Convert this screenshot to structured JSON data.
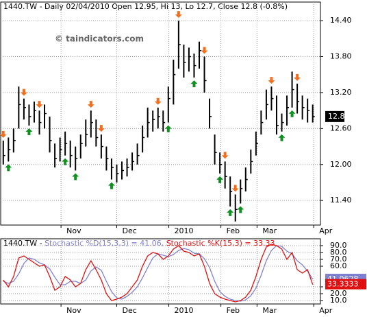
{
  "chart_data": [
    {
      "type": "ohlc",
      "title": "1440.TW - Daily 02/04/2010 Open 12.95, Hi 13, Lo 12.7, Close 12.8 (-0.8%)",
      "watermark": "© taindicators.com",
      "color": "#000000",
      "grid": true,
      "high": [
        12.4,
        12.45,
        12.6,
        13.3,
        13.1,
        13.0,
        13.05,
        12.9,
        13.0,
        12.8,
        12.35,
        12.45,
        12.55,
        12.4,
        12.3,
        12.5,
        12.75,
        12.9,
        12.75,
        12.5,
        12.3,
        12.1,
        12.0,
        12.05,
        12.1,
        12.2,
        12.35,
        12.65,
        12.95,
        12.9,
        12.95,
        12.9,
        13.3,
        13.75,
        14.4,
        14.0,
        13.95,
        13.85,
        14.05,
        13.8,
        13.1,
        12.5,
        12.2,
        12.05,
        11.8,
        11.5,
        11.75,
        11.95,
        12.25,
        12.55,
        12.9,
        13.25,
        13.3,
        13.15,
        12.85,
        13.15,
        13.55,
        13.35,
        13.15,
        13.1,
        13.0
      ],
      "low": [
        12.0,
        12.05,
        12.2,
        12.6,
        12.75,
        12.65,
        12.7,
        12.5,
        12.6,
        12.2,
        11.95,
        12.05,
        12.15,
        11.95,
        11.9,
        12.1,
        12.3,
        12.45,
        12.3,
        12.1,
        11.9,
        11.75,
        11.7,
        11.75,
        11.8,
        11.9,
        12.0,
        12.2,
        12.45,
        12.55,
        12.6,
        12.55,
        12.7,
        13.0,
        13.6,
        13.45,
        13.55,
        13.45,
        13.6,
        13.2,
        12.6,
        12.0,
        11.85,
        11.6,
        11.3,
        11.05,
        11.35,
        11.55,
        11.85,
        12.15,
        12.5,
        12.75,
        12.9,
        12.5,
        12.55,
        12.65,
        12.95,
        12.85,
        12.75,
        12.7,
        12.7
      ],
      "close": [
        12.15,
        12.25,
        12.4,
        13.0,
        12.95,
        12.8,
        12.9,
        12.7,
        12.85,
        12.4,
        12.1,
        12.25,
        12.35,
        12.15,
        12.1,
        12.35,
        12.5,
        12.7,
        12.45,
        12.3,
        12.1,
        11.95,
        11.85,
        11.9,
        11.95,
        12.05,
        12.15,
        12.45,
        12.7,
        12.75,
        12.8,
        12.7,
        13.1,
        13.5,
        14.0,
        13.7,
        13.8,
        13.65,
        13.9,
        13.4,
        12.8,
        12.2,
        12.0,
        11.8,
        11.55,
        11.25,
        11.6,
        11.75,
        12.05,
        12.35,
        12.7,
        13.0,
        13.1,
        12.65,
        12.7,
        12.95,
        13.25,
        13.05,
        12.95,
        12.9,
        12.8
      ],
      "down_arrows": [
        0,
        4,
        7,
        17,
        19,
        30,
        34,
        39,
        43,
        45,
        52,
        57
      ],
      "up_arrows": [
        1,
        5,
        12,
        14,
        21,
        32,
        37,
        42,
        44,
        46,
        54,
        56
      ],
      "down_color": "#f07020",
      "up_color": "#109020",
      "last_price_label": "12.8",
      "xlim": [
        -0.5,
        61.5
      ],
      "xticks": [
        {
          "value": 11.2,
          "label": "Nov"
        },
        {
          "value": 22.0,
          "label": "Dec"
        },
        {
          "value": 32.1,
          "label": "2010"
        },
        {
          "value": 42.2,
          "label": "Feb"
        },
        {
          "value": 49.2,
          "label": "Mar"
        },
        {
          "value": 60.2,
          "label": "Apr"
        }
      ],
      "ylim": [
        10.99,
        14.71
      ],
      "yticks": [
        {
          "value": 11.4,
          "label": "11.40"
        },
        {
          "value": 12.0,
          "label": "12.00"
        },
        {
          "value": 12.6,
          "label": "12.60"
        },
        {
          "value": 13.2,
          "label": "13.20"
        },
        {
          "value": 13.8,
          "label": "13.80"
        },
        {
          "value": 14.4,
          "label": "14.40"
        }
      ]
    },
    {
      "type": "line",
      "title": "1440.TW -",
      "grid": true,
      "series": [
        {
          "name": "Stochastic %D(15,3,3) = 41.06,",
          "color": "#8080d0",
          "last_label": "41.0628",
          "values": [
            38,
            35,
            38,
            49,
            64,
            72,
            70,
            65,
            62,
            56,
            44,
            33,
            33,
            38,
            38,
            35,
            40,
            53,
            59,
            54,
            38,
            23,
            14,
            12,
            16,
            22,
            30,
            43,
            58,
            72,
            78,
            76,
            74,
            77,
            83,
            86,
            84,
            79,
            78,
            71,
            58,
            38,
            23,
            16,
            12,
            10,
            9,
            11,
            17,
            28,
            47,
            68,
            83,
            90,
            89,
            82,
            78,
            68,
            62,
            53,
            41.06
          ]
        },
        {
          "name": "Stochastic %K(15,3) = 33.33",
          "color": "#e01010",
          "last_label": "33.3333",
          "values": [
            40,
            30,
            45,
            72,
            75,
            70,
            65,
            60,
            62,
            45,
            25,
            30,
            45,
            40,
            30,
            35,
            55,
            68,
            55,
            40,
            20,
            10,
            12,
            15,
            20,
            30,
            40,
            60,
            75,
            80,
            78,
            70,
            75,
            85,
            90,
            82,
            80,
            75,
            78,
            60,
            35,
            20,
            15,
            12,
            10,
            8,
            10,
            15,
            25,
            45,
            70,
            88,
            92,
            90,
            85,
            70,
            80,
            55,
            50,
            55,
            33.33
          ]
        }
      ],
      "xlim": [
        -0.5,
        61.5
      ],
      "xticks": [
        {
          "value": 11.2,
          "label": "Nov"
        },
        {
          "value": 22.0,
          "label": "Dec"
        },
        {
          "value": 32.1,
          "label": "2010"
        },
        {
          "value": 42.2,
          "label": "Feb"
        },
        {
          "value": 49.2,
          "label": "Mar"
        },
        {
          "value": 60.2,
          "label": "Apr"
        }
      ],
      "ylim": [
        5,
        100
      ],
      "yticks": [
        {
          "value": 10,
          "label": "10.0"
        },
        {
          "value": 20,
          "label": "20.0"
        },
        {
          "value": 30,
          "label": "30.0"
        },
        {
          "value": 60,
          "label": "60.0"
        },
        {
          "value": 70,
          "label": "70.0"
        },
        {
          "value": 80,
          "label": "80.0"
        },
        {
          "value": 90,
          "label": "90.0"
        }
      ]
    }
  ]
}
